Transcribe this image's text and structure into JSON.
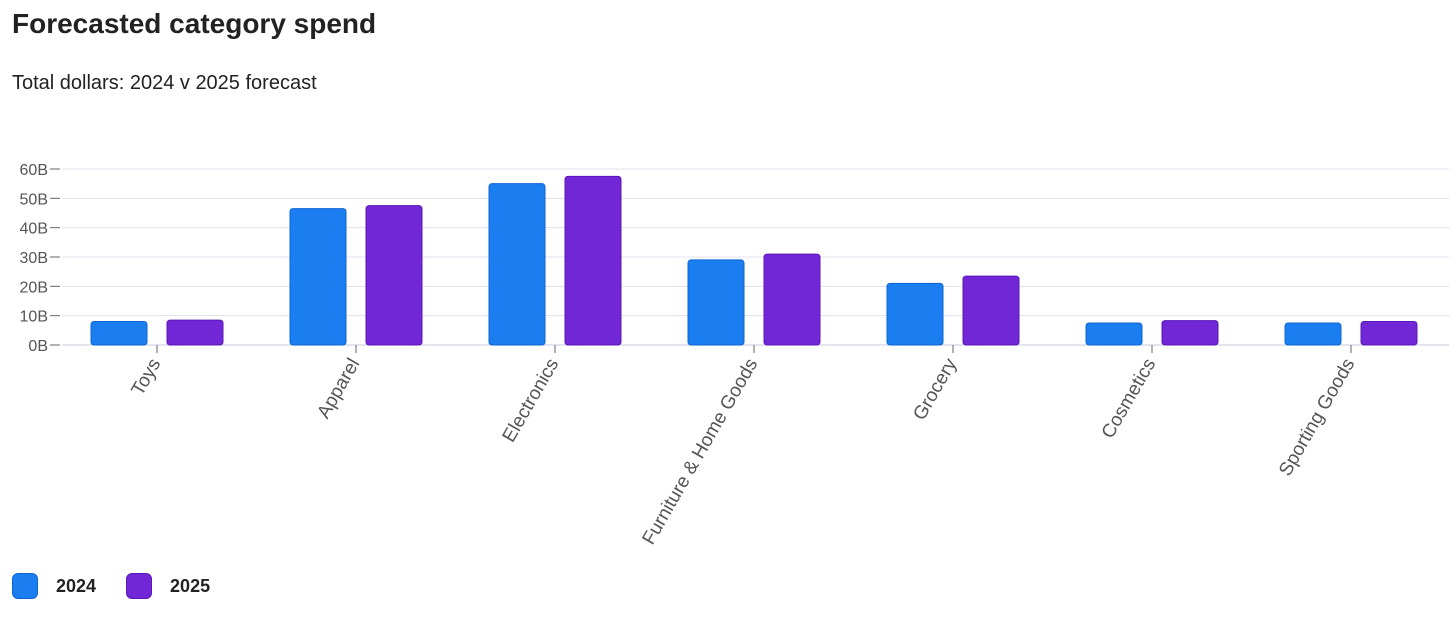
{
  "chart_data": {
    "type": "bar",
    "title": "Forecasted category spend",
    "subtitle": "Total dollars: 2024 v 2025 forecast",
    "xlabel": "",
    "ylabel": "",
    "categories": [
      "Toys",
      "Apparel",
      "Electronics",
      "Furniture & Home Goods",
      "Grocery",
      "Cosmetics",
      "Sporting Goods"
    ],
    "series": [
      {
        "name": "2024",
        "color": "#1a7ef0",
        "values": [
          8,
          46.5,
          55,
          29,
          21,
          7.5,
          7.5
        ]
      },
      {
        "name": "2025",
        "color": "#7127d6",
        "values": [
          8.5,
          47.5,
          57.5,
          31,
          23.5,
          8.3,
          8
        ]
      }
    ],
    "ylim": [
      0,
      60
    ],
    "yticks": [
      0,
      10,
      20,
      30,
      40,
      50,
      60
    ],
    "ytick_labels": [
      "0B",
      "10B",
      "20B",
      "30B",
      "40B",
      "50B",
      "60B"
    ],
    "grid": true,
    "legend_position": "bottom-left"
  }
}
